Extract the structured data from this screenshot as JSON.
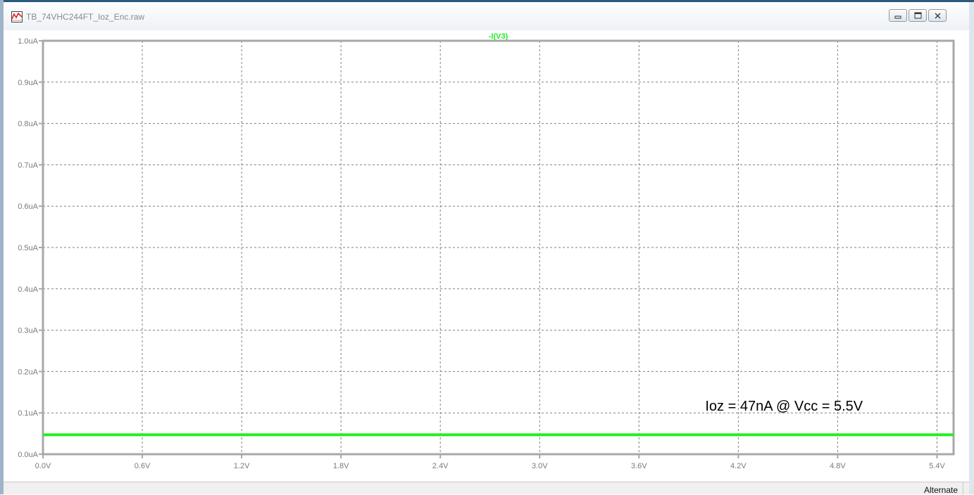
{
  "window": {
    "title": "TB_74VHC244FT_Ioz_Enc.raw",
    "buttons": [
      "minimize",
      "restore",
      "close"
    ]
  },
  "statusbar": {
    "mode": "Alternate"
  },
  "chart_data": {
    "type": "line",
    "title": "",
    "xlabel": "",
    "ylabel": "",
    "xlim": [
      0.0,
      5.5
    ],
    "ylim": [
      0.0,
      1.0
    ],
    "x_ticks": [
      0.0,
      0.6,
      1.2,
      1.8,
      2.4,
      3.0,
      3.6,
      4.2,
      4.8,
      5.4
    ],
    "x_tick_labels": [
      "0.0V",
      "0.6V",
      "1.2V",
      "1.8V",
      "2.4V",
      "3.0V",
      "3.6V",
      "4.2V",
      "4.8V",
      "5.4V"
    ],
    "y_ticks": [
      0.0,
      0.1,
      0.2,
      0.3,
      0.4,
      0.5,
      0.6,
      0.7,
      0.8,
      0.9,
      1.0
    ],
    "y_tick_labels": [
      "0.0uA",
      "0.1uA",
      "0.2uA",
      "0.3uA",
      "0.4uA",
      "0.5uA",
      "0.6uA",
      "0.7uA",
      "0.8uA",
      "0.9uA",
      "1.0uA"
    ],
    "grid": true,
    "series": [
      {
        "name": "-I(V3)",
        "color": "#22ee22",
        "x": [
          0.0,
          5.5
        ],
        "y": [
          0.047,
          0.047
        ]
      }
    ],
    "annotations": [
      {
        "text": "Ioz = 47nA @ Vcc = 5.5V",
        "x": 4.0,
        "y": 0.1
      }
    ]
  }
}
